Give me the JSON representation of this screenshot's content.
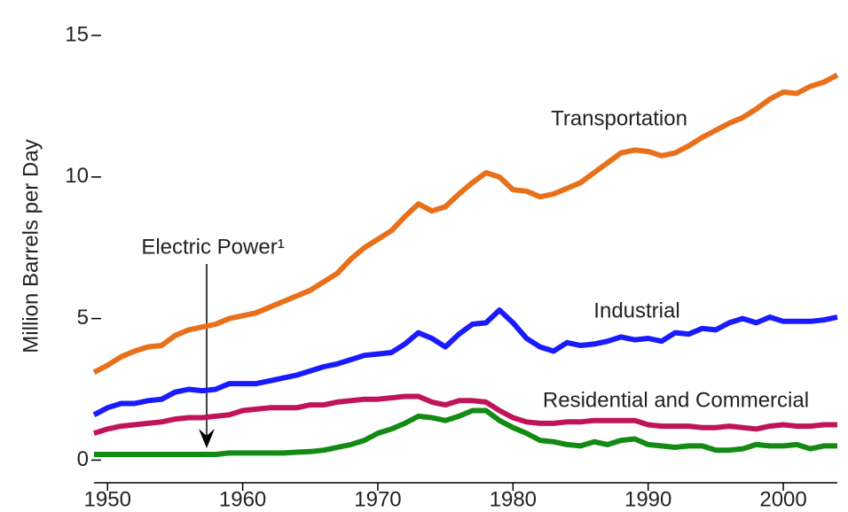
{
  "chart_data": {
    "type": "line",
    "y_label": "Million Barrels per Day",
    "x": [
      1949,
      1950,
      1951,
      1952,
      1953,
      1954,
      1955,
      1956,
      1957,
      1958,
      1959,
      1960,
      1961,
      1962,
      1963,
      1964,
      1965,
      1966,
      1967,
      1968,
      1969,
      1970,
      1971,
      1972,
      1973,
      1974,
      1975,
      1976,
      1977,
      1978,
      1979,
      1980,
      1981,
      1982,
      1983,
      1984,
      1985,
      1986,
      1987,
      1988,
      1989,
      1990,
      1991,
      1992,
      1993,
      1994,
      1995,
      1996,
      1997,
      1998,
      1999,
      2000,
      2001,
      2002,
      2003,
      2004
    ],
    "series": [
      {
        "name": "Transportation",
        "color": "#e8701a",
        "values": [
          3.1,
          3.35,
          3.65,
          3.85,
          4.0,
          4.05,
          4.4,
          4.6,
          4.7,
          4.8,
          5.0,
          5.1,
          5.2,
          5.4,
          5.6,
          5.8,
          6.0,
          6.3,
          6.6,
          7.1,
          7.5,
          7.8,
          8.1,
          8.6,
          9.05,
          8.8,
          8.95,
          9.4,
          9.8,
          10.15,
          10.0,
          9.55,
          9.5,
          9.3,
          9.4,
          9.6,
          9.8,
          10.15,
          10.5,
          10.85,
          10.95,
          10.9,
          10.75,
          10.85,
          11.1,
          11.4,
          11.65,
          11.9,
          12.1,
          12.4,
          12.75,
          13.0,
          12.95,
          13.2,
          13.35,
          13.6
        ]
      },
      {
        "name": "Industrial",
        "color": "#1a1aff",
        "values": [
          1.6,
          1.85,
          2.0,
          2.0,
          2.1,
          2.15,
          2.4,
          2.5,
          2.45,
          2.5,
          2.7,
          2.7,
          2.7,
          2.8,
          2.9,
          3.0,
          3.15,
          3.3,
          3.4,
          3.55,
          3.7,
          3.75,
          3.8,
          4.1,
          4.5,
          4.3,
          4.0,
          4.45,
          4.8,
          4.85,
          5.3,
          4.85,
          4.3,
          4.0,
          3.85,
          4.15,
          4.05,
          4.1,
          4.2,
          4.35,
          4.25,
          4.3,
          4.2,
          4.5,
          4.45,
          4.65,
          4.6,
          4.85,
          5.0,
          4.85,
          5.05,
          4.9,
          4.9,
          4.9,
          4.95,
          5.05
        ]
      },
      {
        "name": "Residential and Commercial",
        "color": "#c0145a",
        "values": [
          0.95,
          1.1,
          1.2,
          1.25,
          1.3,
          1.35,
          1.45,
          1.5,
          1.5,
          1.55,
          1.6,
          1.75,
          1.8,
          1.85,
          1.85,
          1.85,
          1.95,
          1.95,
          2.05,
          2.1,
          2.15,
          2.15,
          2.2,
          2.25,
          2.25,
          2.05,
          1.95,
          2.1,
          2.1,
          2.05,
          1.75,
          1.5,
          1.35,
          1.3,
          1.3,
          1.35,
          1.35,
          1.4,
          1.4,
          1.4,
          1.4,
          1.25,
          1.2,
          1.2,
          1.2,
          1.15,
          1.15,
          1.2,
          1.15,
          1.1,
          1.2,
          1.25,
          1.2,
          1.2,
          1.25,
          1.25
        ]
      },
      {
        "name": "Electric Power¹",
        "color": "#138a13",
        "values": [
          0.2,
          0.2,
          0.2,
          0.2,
          0.2,
          0.2,
          0.2,
          0.2,
          0.2,
          0.2,
          0.25,
          0.25,
          0.25,
          0.25,
          0.25,
          0.28,
          0.3,
          0.35,
          0.45,
          0.55,
          0.7,
          0.95,
          1.1,
          1.3,
          1.55,
          1.5,
          1.4,
          1.55,
          1.75,
          1.75,
          1.4,
          1.15,
          0.95,
          0.7,
          0.65,
          0.55,
          0.5,
          0.65,
          0.55,
          0.7,
          0.75,
          0.55,
          0.5,
          0.45,
          0.5,
          0.5,
          0.35,
          0.35,
          0.4,
          0.55,
          0.5,
          0.5,
          0.55,
          0.4,
          0.5,
          0.5
        ]
      }
    ],
    "xlim": [
      1949,
      2004
    ],
    "xticks": [
      1950,
      1960,
      1970,
      1980,
      1990,
      2000
    ],
    "ylim": [
      -0.8,
      15
    ],
    "yticks": [
      0,
      5,
      10,
      15
    ]
  }
}
